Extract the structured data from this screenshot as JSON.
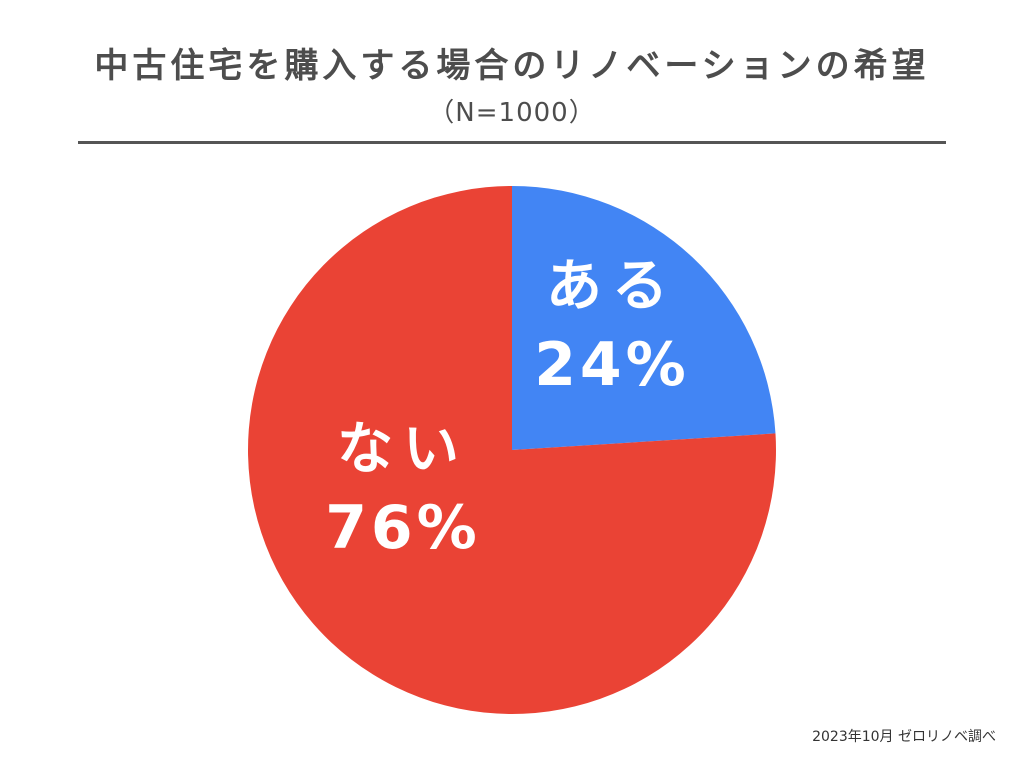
{
  "chart_data": {
    "type": "pie",
    "title": "中古住宅を購入する場合のリノベーションの希望",
    "subtitle": "（N=1000）",
    "slices": [
      {
        "label": "ある",
        "value": 24,
        "value_label": "24%",
        "color": "#4285f4"
      },
      {
        "label": "ない",
        "value": 76,
        "value_label": "76%",
        "color": "#ea4335"
      }
    ],
    "start_angle_deg": 0,
    "direction": "clockwise",
    "legend": "none",
    "label_color": "#ffffff"
  },
  "footer": {
    "source": "2023年10月 ゼロリノベ調べ"
  }
}
